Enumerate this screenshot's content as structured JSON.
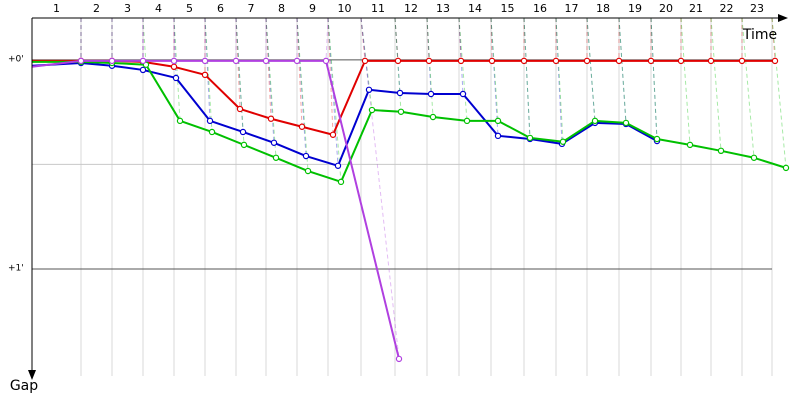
{
  "chart_data": {
    "type": "line",
    "x_label": "Time",
    "y_label": "Gap",
    "laps": [
      "1",
      "2",
      "3",
      "4",
      "5",
      "6",
      "7",
      "8",
      "9",
      "10",
      "11",
      "12",
      "13",
      "14",
      "15",
      "16",
      "17",
      "18",
      "19",
      "20",
      "21",
      "22",
      "23"
    ],
    "lap_x": [
      49,
      80,
      111,
      142,
      173,
      204,
      234,
      265,
      296,
      329,
      363,
      395,
      427,
      459,
      492,
      524,
      555,
      587,
      619,
      649,
      679,
      710,
      740
    ],
    "xlim": [
      0,
      760
    ],
    "ylim": [
      -12,
      93
    ],
    "yticks": [
      {
        "value": 0,
        "label": "+0'"
      },
      {
        "value": 60,
        "label": "+1'"
      }
    ],
    "minor_yticks": [
      30
    ],
    "series": [
      {
        "color": "#e00000",
        "x": [
          0,
          49,
          80,
          111,
          142,
          173,
          208,
          239,
          270,
          301,
          333,
          366,
          397,
          429,
          460,
          492,
          524,
          555,
          587,
          619,
          649,
          679,
          710,
          743
        ],
        "values": [
          0.3,
          0.3,
          0.3,
          0.6,
          2.0,
          4.3,
          14.1,
          16.9,
          19.2,
          21.5,
          0.3,
          0.3,
          0.3,
          0.3,
          0.3,
          0.3,
          0.3,
          0.3,
          0.3,
          0.3,
          0.3,
          0.3,
          0.3,
          0.3
        ]
      },
      {
        "color": "#0000d0",
        "x": [
          0,
          49,
          80,
          111,
          144,
          178,
          211,
          242,
          274,
          306,
          337,
          368,
          399,
          431,
          466,
          498,
          530,
          563,
          594,
          625
        ],
        "values": [
          1.7,
          0.9,
          1.7,
          2.9,
          5.2,
          17.5,
          20.7,
          23.8,
          27.6,
          30.4,
          8.6,
          9.5,
          9.8,
          9.8,
          21.8,
          22.7,
          24.1,
          18.1,
          18.4,
          23.3
        ]
      },
      {
        "color": "#00c000",
        "x": [
          0,
          49,
          80,
          114,
          148,
          180,
          212,
          244,
          276,
          309,
          340,
          369,
          401,
          435,
          466,
          498,
          531,
          563,
          594,
          625,
          658,
          689,
          722,
          754
        ],
        "values": [
          0.6,
          0.6,
          0.9,
          1.4,
          17.5,
          20.7,
          24.4,
          28.1,
          31.9,
          35.0,
          14.4,
          14.9,
          16.4,
          17.5,
          17.5,
          22.4,
          23.5,
          17.5,
          18.1,
          22.7,
          24.4,
          26.1,
          28.1,
          31.0
        ]
      },
      {
        "color": "#b040e0",
        "x": [
          0,
          49,
          80,
          111,
          142,
          173,
          204,
          234,
          265,
          294,
          367
        ],
        "values": [
          2.0,
          0.3,
          0.3,
          0.3,
          0.3,
          0.3,
          0.3,
          0.3,
          0.3,
          0.3,
          85.8
        ]
      }
    ]
  }
}
